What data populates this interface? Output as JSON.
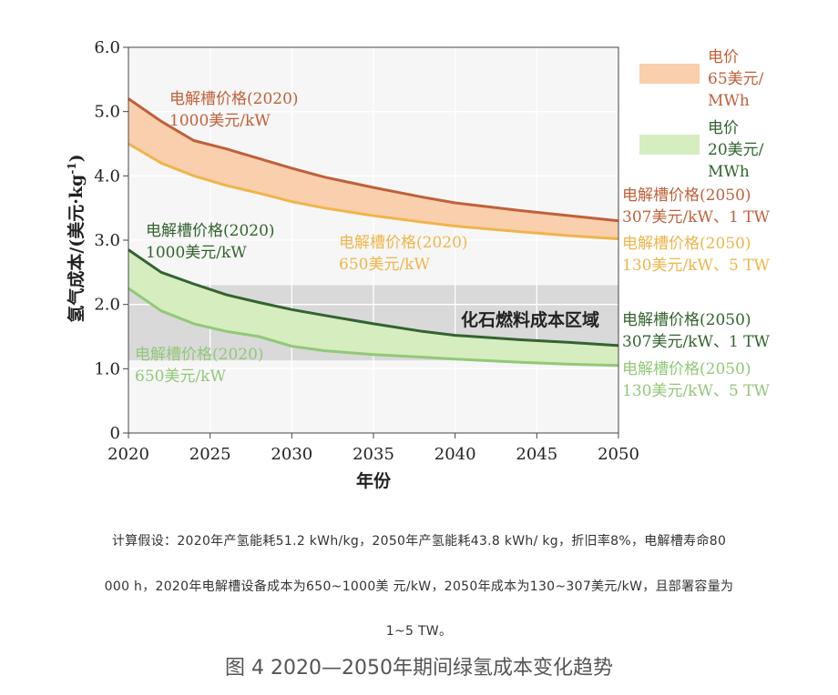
{
  "chart_data": {
    "type": "area",
    "xlabel": "年份",
    "ylabel": "氢气成本/(美元·kg",
    "ylabel_sup": "-1",
    "ylabel_close": ")",
    "xlim": [
      2020,
      2050
    ],
    "ylim": [
      0,
      6
    ],
    "xticks": [
      "2020",
      "2025",
      "2030",
      "2035",
      "2040",
      "2045",
      "2050"
    ],
    "yticks": [
      "0",
      "1.0",
      "2.0",
      "3.0",
      "4.0",
      "5.0",
      "6.0"
    ],
    "x": [
      2020,
      2022,
      2024,
      2026,
      2028,
      2030,
      2032,
      2035,
      2038,
      2040,
      2044,
      2047,
      2050
    ],
    "bands": [
      {
        "legend": [
          "电价",
          "65美元/",
          "MWh"
        ],
        "fill": "#f9cfad",
        "upper": {
          "values": [
            5.2,
            4.85,
            4.55,
            4.42,
            4.27,
            4.12,
            3.98,
            3.82,
            3.67,
            3.58,
            3.46,
            3.38,
            3.3
          ],
          "color": "#c0603a"
        },
        "lower": {
          "values": [
            4.5,
            4.2,
            4.0,
            3.85,
            3.73,
            3.6,
            3.5,
            3.38,
            3.28,
            3.22,
            3.13,
            3.07,
            3.02
          ],
          "color": "#efb54a"
        }
      },
      {
        "legend": [
          "电价",
          "20美元/",
          "MWh"
        ],
        "fill": "#d6edc0",
        "upper": {
          "values": [
            2.85,
            2.5,
            2.32,
            2.15,
            2.03,
            1.92,
            1.83,
            1.7,
            1.58,
            1.52,
            1.45,
            1.41,
            1.36
          ],
          "color": "#33632f"
        },
        "lower": {
          "values": [
            2.25,
            1.9,
            1.7,
            1.58,
            1.5,
            1.35,
            1.28,
            1.22,
            1.18,
            1.15,
            1.1,
            1.07,
            1.05
          ],
          "color": "#92c878"
        }
      }
    ],
    "shaded_region": {
      "label": "化石燃料成本区域",
      "y_range": [
        1.13,
        2.3
      ],
      "color": "#d9d9d9"
    },
    "annotations": [
      {
        "lines": [
          "电解槽价格(2020)",
          "1000美元/kW"
        ],
        "color": "#c0603a"
      },
      {
        "lines": [
          "电解槽价格(2020)",
          "650美元/kW"
        ],
        "color": "#efb54a"
      },
      {
        "lines": [
          "电解槽价格(2020)",
          "1000美元/kW"
        ],
        "color": "#33632f"
      },
      {
        "lines": [
          "电解槽价格(2020)",
          "650美元/kW"
        ],
        "color": "#92c878"
      },
      {
        "lines": [
          "电解槽价格(2050)",
          "307美元/kW、1 TW"
        ],
        "color": "#c0603a"
      },
      {
        "lines": [
          "电解槽价格(2050)",
          "130美元/kW、5 TW"
        ],
        "color": "#efb54a"
      },
      {
        "lines": [
          "电解槽价格(2050)",
          "307美元/kW、1 TW"
        ],
        "color": "#33632f"
      },
      {
        "lines": [
          "电解槽价格(2050)",
          "130美元/kW、5 TW"
        ],
        "color": "#92c878"
      }
    ]
  },
  "notes": {
    "line1": "计算假设：2020年产氢能耗51.2 kWh/kg，2050年产氢能耗43.8 kWh/ kg，折旧率8%，电解槽寿命80",
    "line2": "000 h，2020年电解槽设备成本为650~1000美 元/kW，2050年成本为130~307美元/kW，且部署容量为",
    "line3": "1~5 TW。"
  },
  "caption": "图 4 2020—2050年期间绿氢成本变化趋势"
}
